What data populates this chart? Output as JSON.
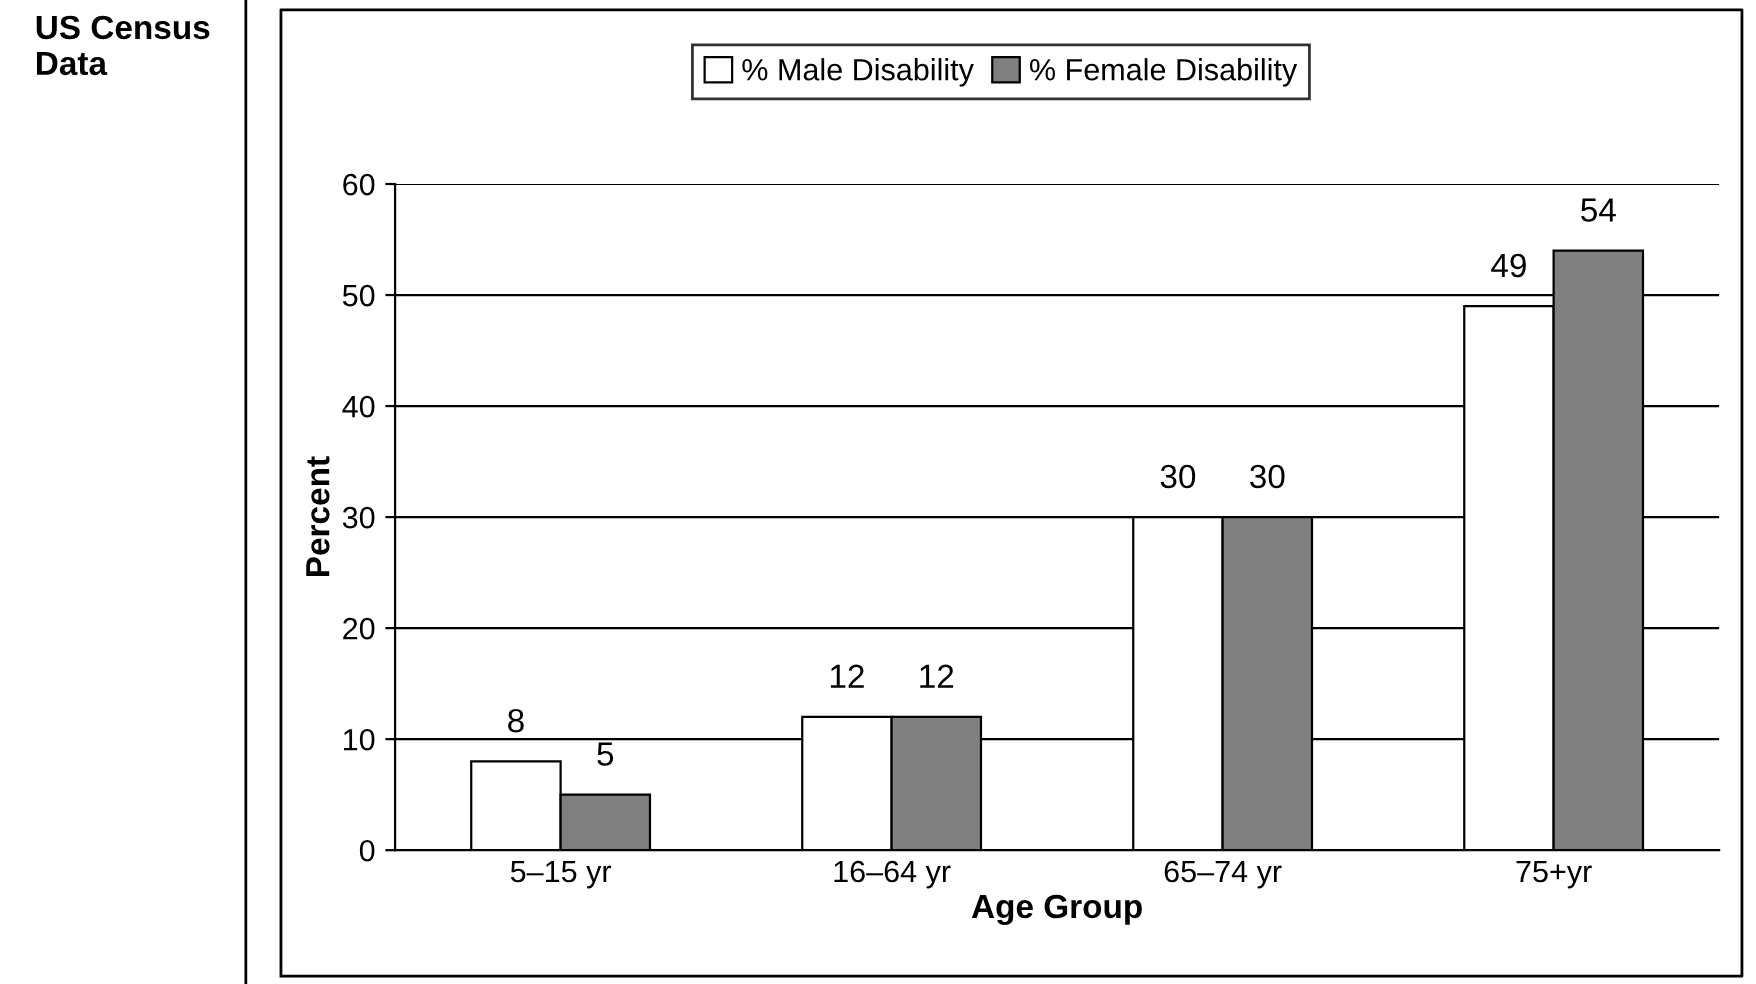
{
  "chart_data": {
    "type": "bar",
    "xlabel": "Age Group",
    "ylabel": "Percent",
    "annotations": [
      "US Census Data"
    ],
    "categories": [
      "5–15 yr",
      "16–64 yr",
      "65–74 yr",
      "75+yr"
    ],
    "series": [
      {
        "name": "% Male Disability",
        "color": "#ffffff",
        "values": [
          8,
          12,
          30,
          49
        ]
      },
      {
        "name": "% Female Disability",
        "color": "#808080",
        "values": [
          5,
          12,
          30,
          54
        ]
      }
    ],
    "ylim": [
      0,
      60
    ],
    "yticks": [
      0,
      10,
      20,
      30,
      40,
      50,
      60
    ],
    "grid": "y",
    "legend": "top",
    "data_labels": true
  }
}
